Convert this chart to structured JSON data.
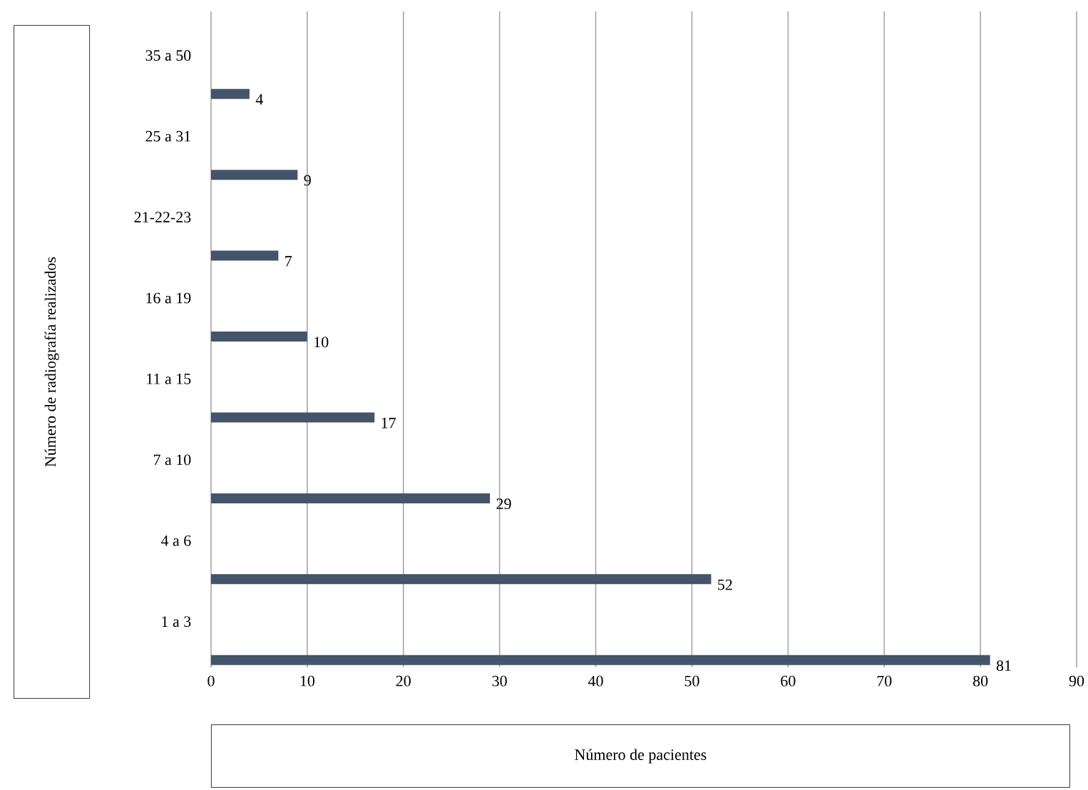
{
  "chart_data": {
    "type": "bar",
    "orientation": "horizontal",
    "xlabel": "Número de pacientes",
    "ylabel": "Número de radiografía realizados",
    "categories": [
      "35 a 50",
      "25 a 31",
      "21-22-23",
      "16 a 19",
      "11 a 15",
      "7 a 10",
      "4 a 6",
      "1 a 3"
    ],
    "values": [
      4,
      9,
      7,
      10,
      17,
      29,
      52,
      81
    ],
    "color": "#44546a",
    "xlim": [
      0,
      90
    ],
    "xticks": [
      0,
      10,
      20,
      30,
      40,
      50,
      60,
      70,
      80,
      90
    ],
    "grid": "x",
    "data_labels": true
  }
}
